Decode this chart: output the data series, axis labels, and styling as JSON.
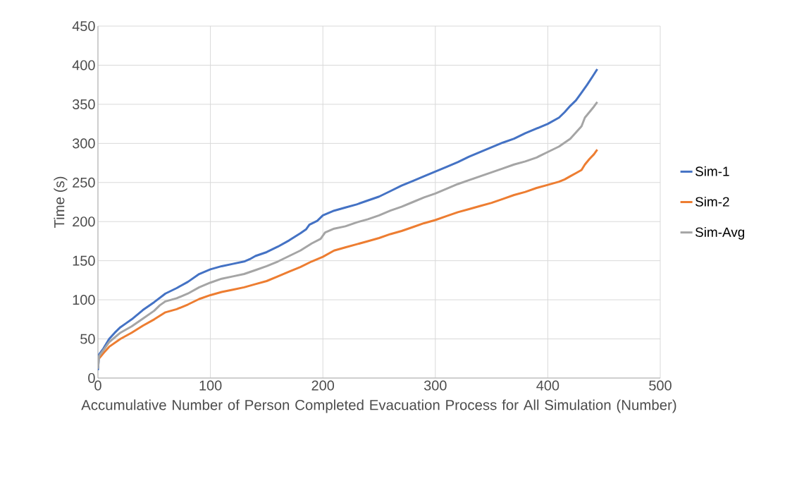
{
  "chart_data": {
    "type": "line",
    "xlabel": "Accumulative Number of Person Completed Evacuation Process for All Simulation (Number)",
    "ylabel": "Time (s)",
    "xlim": [
      0,
      500
    ],
    "xticks": [
      0,
      100,
      200,
      300,
      400,
      500
    ],
    "ylim": [
      0,
      450
    ],
    "yticks": [
      0,
      50,
      100,
      150,
      200,
      250,
      300,
      350,
      400,
      450
    ],
    "grid": true,
    "legend": "right",
    "marker": "none",
    "line_style": "solid",
    "series": [
      {
        "name": "Sim-1",
        "color": "#4472c4",
        "x": [
          0,
          1,
          5,
          10,
          15,
          20,
          25,
          30,
          40,
          50,
          60,
          70,
          80,
          90,
          100,
          110,
          120,
          130,
          135,
          140,
          150,
          160,
          170,
          180,
          185,
          188,
          195,
          200,
          210,
          220,
          230,
          240,
          250,
          260,
          270,
          280,
          290,
          300,
          310,
          320,
          330,
          340,
          350,
          360,
          370,
          380,
          390,
          400,
          410,
          415,
          420,
          425,
          430,
          435,
          440,
          444
        ],
        "values": [
          10,
          30,
          38,
          50,
          58,
          65,
          70,
          75,
          87,
          97,
          108,
          115,
          123,
          133,
          139,
          143,
          146,
          149,
          152,
          156,
          161,
          168,
          176,
          185,
          190,
          196,
          201,
          208,
          214,
          218,
          222,
          227,
          232,
          239,
          246,
          252,
          258,
          264,
          270,
          276,
          283,
          289,
          295,
          301,
          306,
          313,
          319,
          325,
          333,
          340,
          348,
          355,
          365,
          375,
          386,
          395
        ]
      },
      {
        "name": "Sim-2",
        "color": "#ed7d31",
        "x": [
          1,
          5,
          10,
          20,
          30,
          40,
          50,
          60,
          70,
          80,
          90,
          100,
          110,
          120,
          130,
          140,
          150,
          160,
          170,
          180,
          190,
          200,
          210,
          220,
          230,
          240,
          250,
          260,
          270,
          280,
          290,
          300,
          310,
          320,
          330,
          340,
          350,
          360,
          370,
          380,
          390,
          400,
          410,
          415,
          420,
          425,
          430,
          433,
          437,
          441,
          444
        ],
        "values": [
          25,
          32,
          40,
          50,
          58,
          67,
          75,
          84,
          88,
          94,
          101,
          106,
          110,
          113,
          116,
          120,
          124,
          130,
          136,
          142,
          149,
          155,
          163,
          167,
          171,
          175,
          179,
          184,
          188,
          193,
          198,
          202,
          207,
          212,
          216,
          220,
          224,
          229,
          234,
          238,
          243,
          247,
          251,
          254,
          258,
          262,
          266,
          273,
          280,
          286,
          292
        ]
      },
      {
        "name": "Sim-Avg",
        "color": "#a5a5a5",
        "x": [
          0,
          1,
          5,
          10,
          20,
          30,
          40,
          50,
          55,
          60,
          70,
          80,
          90,
          100,
          110,
          120,
          130,
          140,
          150,
          160,
          170,
          180,
          190,
          198,
          202,
          210,
          220,
          230,
          240,
          250,
          260,
          270,
          280,
          290,
          300,
          310,
          320,
          330,
          340,
          350,
          360,
          370,
          380,
          390,
          400,
          410,
          420,
          425,
          430,
          433,
          437,
          441,
          444
        ],
        "values": [
          12,
          28,
          36,
          46,
          58,
          66,
          76,
          86,
          93,
          98,
          102,
          108,
          116,
          122,
          127,
          130,
          133,
          138,
          143,
          149,
          156,
          163,
          172,
          178,
          186,
          191,
          194,
          199,
          203,
          208,
          214,
          219,
          225,
          231,
          236,
          242,
          248,
          253,
          258,
          263,
          268,
          273,
          277,
          282,
          289,
          296,
          306,
          314,
          322,
          333,
          340,
          347,
          353
        ]
      }
    ]
  }
}
